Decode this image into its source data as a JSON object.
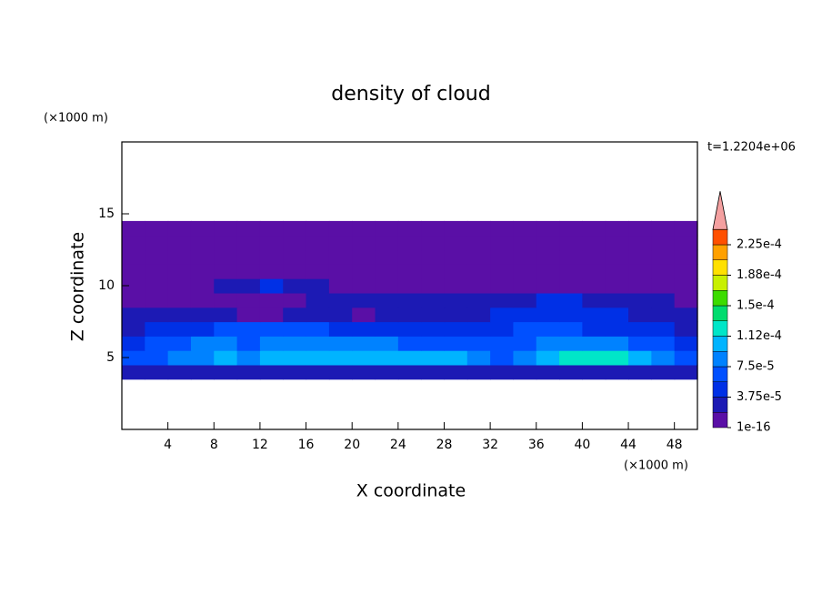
{
  "chart_data": {
    "type": "contour",
    "title": "density of cloud",
    "xlabel": "X coordinate",
    "ylabel": "Z coordinate",
    "x_unit": "(×1000 m)",
    "y_unit": "(×1000 m)",
    "time_label": "t=1.2204e+06",
    "xlim": [
      0,
      50
    ],
    "ylim": [
      0,
      20
    ],
    "xticks": [
      4,
      8,
      12,
      16,
      20,
      24,
      28,
      32,
      36,
      40,
      44,
      48
    ],
    "yticks": [
      5,
      10,
      15
    ],
    "x_edges": [
      0,
      2,
      4,
      6,
      8,
      10,
      12,
      14,
      16,
      18,
      20,
      22,
      24,
      26,
      28,
      30,
      32,
      34,
      36,
      38,
      40,
      42,
      44,
      46,
      48,
      50
    ],
    "z_edges": [
      3.5,
      4.5,
      5.5,
      6.5,
      7.5,
      8.5,
      9.5,
      10.5,
      11.5,
      12.5,
      13.5,
      14.5
    ],
    "z": [
      [
        2e-05,
        2e-05,
        2.5e-05,
        3e-05,
        3e-05,
        2.5e-05,
        3e-05,
        2.5e-05,
        2.5e-05,
        2.5e-05,
        3e-05,
        3e-05,
        3e-05,
        2.5e-05,
        2.5e-05,
        2.5e-05,
        2.5e-05,
        2.5e-05,
        3e-05,
        3e-05,
        3e-05,
        3e-05,
        2.5e-05,
        2.5e-05,
        2e-05
      ],
      [
        6e-05,
        7e-05,
        8e-05,
        9e-05,
        0.0001,
        9e-05,
        0.0001,
        0.0001,
        0.0001,
        0.00011,
        0.0001,
        0.00011,
        0.00011,
        0.0001,
        0.00011,
        8e-05,
        7e-05,
        8e-05,
        0.0001,
        0.00012,
        0.00013,
        0.00012,
        0.0001,
        8e-05,
        7e-05
      ],
      [
        5e-05,
        6e-05,
        7e-05,
        8e-05,
        8e-05,
        7e-05,
        8e-05,
        8e-05,
        8e-05,
        9e-05,
        8e-05,
        8e-05,
        7e-05,
        6e-05,
        7e-05,
        6e-05,
        6e-05,
        7e-05,
        8e-05,
        9e-05,
        9e-05,
        8e-05,
        7e-05,
        6e-05,
        5e-05
      ],
      [
        3e-05,
        4e-05,
        4e-05,
        5e-05,
        6e-05,
        6e-05,
        6e-05,
        6e-05,
        6e-05,
        5e-05,
        5e-05,
        5e-05,
        4e-05,
        4e-05,
        4e-05,
        5e-05,
        5e-05,
        6e-05,
        6e-05,
        6e-05,
        5e-05,
        5e-05,
        4e-05,
        4e-05,
        3e-05
      ],
      [
        2e-05,
        3e-05,
        3e-05,
        2e-05,
        2e-05,
        1.5e-05,
        1.5e-05,
        2e-05,
        2e-05,
        2e-05,
        1.5e-05,
        2e-05,
        2e-05,
        2e-05,
        2e-05,
        3e-05,
        4e-05,
        4e-05,
        5e-05,
        4e-05,
        4e-05,
        4e-05,
        3e-05,
        3e-05,
        2e-05
      ],
      [
        1e-05,
        1e-05,
        1e-05,
        1e-05,
        1e-05,
        1e-05,
        1e-05,
        1.5e-05,
        2e-05,
        2e-05,
        2e-05,
        2e-05,
        2e-05,
        2e-05,
        2e-05,
        2e-05,
        2.5e-05,
        3e-05,
        4e-05,
        4e-05,
        3e-05,
        3e-05,
        2.5e-05,
        2e-05,
        1.5e-05
      ],
      [
        1e-05,
        1e-05,
        1e-05,
        1e-05,
        2e-05,
        3e-05,
        4e-05,
        3e-05,
        3e-05,
        1e-05,
        1e-05,
        1e-05,
        1e-05,
        1e-05,
        1e-05,
        1e-05,
        1e-05,
        1e-05,
        1e-05,
        1e-05,
        1e-05,
        1e-05,
        1e-05,
        1e-05,
        1e-05
      ],
      [
        1e-05,
        1e-05,
        1e-05,
        1e-05,
        1e-05,
        1e-05,
        1e-05,
        1e-05,
        1e-05,
        1e-05,
        1e-05,
        1e-05,
        1e-05,
        1e-05,
        1e-05,
        1e-05,
        1e-05,
        1e-05,
        1e-05,
        1e-05,
        1e-05,
        1e-05,
        1e-05,
        1e-05,
        1e-05
      ],
      [
        1e-05,
        1e-05,
        1e-05,
        1e-05,
        1e-05,
        1e-05,
        1e-05,
        1e-05,
        1e-05,
        1e-05,
        1e-05,
        1e-05,
        1e-05,
        1e-05,
        1e-05,
        1e-05,
        1e-05,
        1e-05,
        1e-05,
        1e-05,
        1e-05,
        1e-05,
        1e-05,
        1e-05,
        1e-05
      ],
      [
        1e-05,
        1e-05,
        1e-05,
        1e-05,
        1e-05,
        1e-05,
        1e-05,
        1e-05,
        1e-05,
        1e-05,
        1e-05,
        1e-05,
        1e-05,
        1e-05,
        1e-05,
        1e-05,
        1e-05,
        1e-05,
        1e-05,
        1e-05,
        1e-05,
        1e-05,
        1e-05,
        1e-05,
        1e-05
      ],
      [
        1e-05,
        1e-05,
        1e-05,
        1e-05,
        1e-05,
        1e-05,
        1e-05,
        1e-05,
        1e-05,
        1e-05,
        1e-05,
        1e-05,
        1e-05,
        1e-05,
        1e-05,
        1e-05,
        1e-05,
        1e-05,
        1e-05,
        1e-05,
        1e-05,
        1e-05,
        1e-05,
        1e-05,
        1e-05
      ]
    ],
    "levels": [
      1e-16,
      1.875e-05,
      3.75e-05,
      5.625e-05,
      7.5e-05,
      9.375e-05,
      0.0001125,
      0.00013125,
      0.00015,
      0.00016875,
      0.0001875,
      0.00020625,
      0.000225,
      0.00024375
    ],
    "colors": [
      "#5a0fa6",
      "#1c1ab4",
      "#0030e6",
      "#0050ff",
      "#0082ff",
      "#00b4ff",
      "#00e6c8",
      "#00dc6e",
      "#3cdc00",
      "#c8f000",
      "#ffe000",
      "#ffa000",
      "#ff5000"
    ],
    "above_color": "#f4a0a0",
    "colorbar_ticks": [
      {
        "value": 1e-16,
        "label": "1e-16"
      },
      {
        "value": 3.75e-05,
        "label": "3.75e-5"
      },
      {
        "value": 7.5e-05,
        "label": "7.5e-5"
      },
      {
        "value": 0.0001125,
        "label": "1.12e-4"
      },
      {
        "value": 0.00015,
        "label": "1.5e-4"
      },
      {
        "value": 0.0001875,
        "label": "1.88e-4"
      },
      {
        "value": 0.000225,
        "label": "2.25e-4"
      }
    ]
  }
}
